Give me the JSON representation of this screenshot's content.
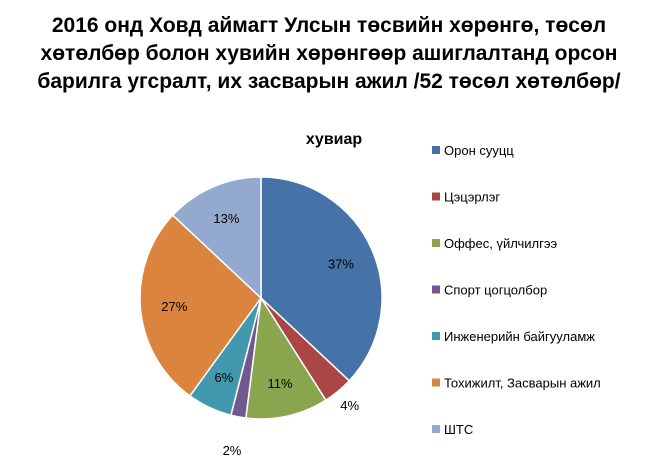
{
  "chart_data": {
    "type": "pie",
    "title_lines": [
      "2016 онд Ховд аймагт Улсын төсвийн хөрөнгө, төсөл",
      "хөтөлбөр болон хувийн хөрөнгөөр ашиглалтанд орсон",
      "барилга угсралт, их засварын ажил /52 төсөл хөтөлбөр/"
    ],
    "subtitle": "хувиар",
    "slices": [
      {
        "name": "Орон сууцц",
        "value": 37,
        "label": "37%",
        "color": "#4572A7"
      },
      {
        "name": "Цэцэрлэг",
        "value": 4,
        "label": "4%",
        "color": "#AA4643"
      },
      {
        "name": "Оффес, үйлчилгээ",
        "value": 11,
        "label": "11%",
        "color": "#89A54E"
      },
      {
        "name": "Спорт цогцолбор",
        "value": 2,
        "label": "2%",
        "color": "#71588F"
      },
      {
        "name": "Инженерийн байгууламж",
        "value": 6,
        "label": "6%",
        "color": "#4198AF"
      },
      {
        "name": "Тохижилт, Засварын ажил",
        "value": 27,
        "label": "27%",
        "color": "#DB843D"
      },
      {
        "name": "ШТС",
        "value": 13,
        "label": "13%",
        "color": "#93A9CF"
      }
    ],
    "legend_position": "right"
  }
}
